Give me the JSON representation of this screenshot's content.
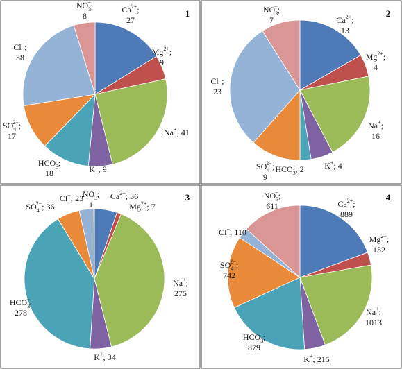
{
  "colors": {
    "Ca": "#4f7ab8",
    "Mg": "#c0504d",
    "Na": "#9bbb59",
    "K": "#7e62a1",
    "HCO3": "#4aa3b6",
    "SO4": "#e9893a",
    "Cl": "#95b3d7",
    "NO3": "#d99695",
    "panel_border": "#444444"
  },
  "chart_data": [
    {
      "type": "pie",
      "panel_number": "1",
      "slices": [
        {
          "ion": "Ca",
          "base": "Ca",
          "sup": "2+",
          "sub": "",
          "value": 27
        },
        {
          "ion": "Mg",
          "base": "Mg",
          "sup": "2+",
          "sub": "",
          "value": 9
        },
        {
          "ion": "Na",
          "base": "Na",
          "sup": "+",
          "sub": "",
          "value": 41
        },
        {
          "ion": "K",
          "base": "K",
          "sup": "+",
          "sub": "",
          "value": 9
        },
        {
          "ion": "HCO3",
          "base": "HCO",
          "sup": "−",
          "sub": "3",
          "value": 18
        },
        {
          "ion": "SO4",
          "base": "SO",
          "sup": "2−",
          "sub": "4",
          "value": 17
        },
        {
          "ion": "Cl",
          "base": "Cl",
          "sup": "−",
          "sub": "",
          "value": 38
        },
        {
          "ion": "NO3",
          "base": "NO",
          "sup": "−",
          "sub": "3",
          "value": 8
        }
      ]
    },
    {
      "type": "pie",
      "panel_number": "2",
      "slices": [
        {
          "ion": "Ca",
          "base": "Ca",
          "sup": "2+",
          "sub": "",
          "value": 13
        },
        {
          "ion": "Mg",
          "base": "Mg",
          "sup": "2+",
          "sub": "",
          "value": 4
        },
        {
          "ion": "Na",
          "base": "Na",
          "sup": "+",
          "sub": "",
          "value": 16
        },
        {
          "ion": "K",
          "base": "K",
          "sup": "+",
          "sub": "",
          "value": 4
        },
        {
          "ion": "HCO3",
          "base": "HCO",
          "sup": "−",
          "sub": "3",
          "value": 2
        },
        {
          "ion": "SO4",
          "base": "SO",
          "sup": "2−",
          "sub": "4",
          "value": 9
        },
        {
          "ion": "Cl",
          "base": "Cl",
          "sup": "−",
          "sub": "",
          "value": 23
        },
        {
          "ion": "NO3",
          "base": "NO",
          "sup": "−",
          "sub": "3",
          "value": 7
        }
      ]
    },
    {
      "type": "pie",
      "panel_number": "3",
      "slices": [
        {
          "ion": "Ca",
          "base": "Ca",
          "sup": "2+",
          "sub": "",
          "value": 36
        },
        {
          "ion": "Mg",
          "base": "Mg",
          "sup": "2+",
          "sub": "",
          "value": 7
        },
        {
          "ion": "Na",
          "base": "Na",
          "sup": "+",
          "sub": "",
          "value": 275
        },
        {
          "ion": "K",
          "base": "K",
          "sup": "+",
          "sub": "",
          "value": 34
        },
        {
          "ion": "HCO3",
          "base": "HCO",
          "sup": "−",
          "sub": "3",
          "value": 278
        },
        {
          "ion": "SO4",
          "base": "SO",
          "sup": "2−",
          "sub": "4",
          "value": 36
        },
        {
          "ion": "Cl",
          "base": "Cl",
          "sup": "−",
          "sub": "",
          "value": 23
        },
        {
          "ion": "NO3",
          "base": "NO",
          "sup": "−",
          "sub": "3",
          "value": 1
        }
      ]
    },
    {
      "type": "pie",
      "panel_number": "4",
      "slices": [
        {
          "ion": "Ca",
          "base": "Ca",
          "sup": "2+",
          "sub": "",
          "value": 889
        },
        {
          "ion": "Mg",
          "base": "Mg",
          "sup": "2+",
          "sub": "",
          "value": 132
        },
        {
          "ion": "Na",
          "base": "Na",
          "sup": "+",
          "sub": "",
          "value": 1013
        },
        {
          "ion": "K",
          "base": "K",
          "sup": "+",
          "sub": "",
          "value": 215
        },
        {
          "ion": "HCO3",
          "base": "HCO",
          "sup": "−",
          "sub": "3",
          "value": 879
        },
        {
          "ion": "SO4",
          "base": "SO",
          "sup": "2−",
          "sub": "4",
          "value": 742
        },
        {
          "ion": "Cl",
          "base": "Cl",
          "sup": "−",
          "sub": "",
          "value": 110
        },
        {
          "ion": "NO3",
          "base": "NO",
          "sup": "−",
          "sub": "3",
          "value": 611
        }
      ]
    }
  ]
}
